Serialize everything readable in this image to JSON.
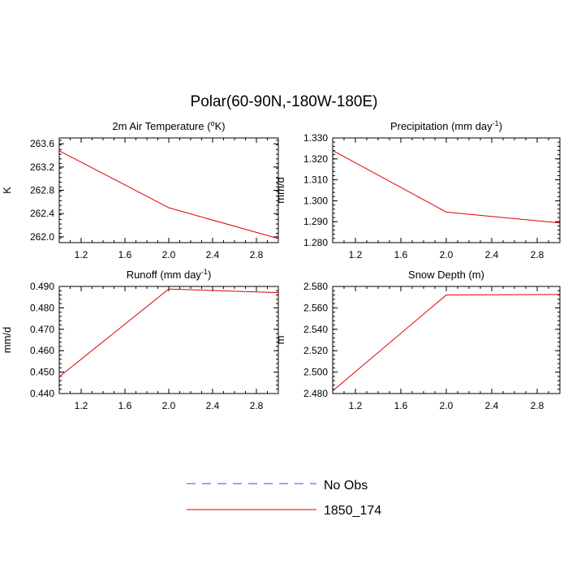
{
  "figure": {
    "title": "Polar(60-90N,-180W-180E)"
  },
  "legend": {
    "entries": [
      {
        "label": "No Obs",
        "color": "#4040ff",
        "dash": "dashed"
      },
      {
        "label": "1850_174",
        "color": "#e00000",
        "dash": "solid"
      }
    ]
  },
  "chart_data": [
    {
      "type": "line",
      "title_main": "2m Air Temperature (",
      "title_sup": "o",
      "title_tail": "K)",
      "ylabel": "K",
      "xlim": [
        1.0,
        3.0
      ],
      "ylim": [
        261.9,
        263.7
      ],
      "xticks": [
        1.2,
        1.6,
        2.0,
        2.4,
        2.8
      ],
      "xtick_labels": [
        "1.2",
        "1.6",
        "2.0",
        "2.4",
        "2.8"
      ],
      "yticks": [
        262.0,
        262.4,
        262.8,
        263.2,
        263.6
      ],
      "ytick_labels": [
        "262.0",
        "262.4",
        "262.8",
        "263.2",
        "263.6"
      ],
      "series": [
        {
          "name": "1850_174",
          "color": "#e00000",
          "x": [
            1,
            2,
            3
          ],
          "y": [
            263.48,
            262.5,
            261.97
          ]
        }
      ]
    },
    {
      "type": "line",
      "title_main": "Precipitation (mm day",
      "title_sup": "-1",
      "title_tail": ")",
      "ylabel": "mm/d",
      "xlim": [
        1.0,
        3.0
      ],
      "ylim": [
        1.28,
        1.33
      ],
      "xticks": [
        1.2,
        1.6,
        2.0,
        2.4,
        2.8
      ],
      "xtick_labels": [
        "1.2",
        "1.6",
        "2.0",
        "2.4",
        "2.8"
      ],
      "yticks": [
        1.28,
        1.29,
        1.3,
        1.31,
        1.32,
        1.33
      ],
      "ytick_labels": [
        "1.280",
        "1.290",
        "1.300",
        "1.310",
        "1.320",
        "1.330"
      ],
      "series": [
        {
          "name": "1850_174",
          "color": "#e00000",
          "x": [
            1,
            2,
            3
          ],
          "y": [
            1.324,
            1.2946,
            1.2894
          ]
        }
      ]
    },
    {
      "type": "line",
      "title_main": "Runoff (mm day",
      "title_sup": "-1",
      "title_tail": ")",
      "ylabel": "mm/d",
      "xlim": [
        1.0,
        3.0
      ],
      "ylim": [
        0.44,
        0.49
      ],
      "xticks": [
        1.2,
        1.6,
        2.0,
        2.4,
        2.8
      ],
      "xtick_labels": [
        "1.2",
        "1.6",
        "2.0",
        "2.4",
        "2.8"
      ],
      "yticks": [
        0.44,
        0.45,
        0.46,
        0.47,
        0.48,
        0.49
      ],
      "ytick_labels": [
        "0.440",
        "0.450",
        "0.460",
        "0.470",
        "0.480",
        "0.490"
      ],
      "series": [
        {
          "name": "1850_174",
          "color": "#e00000",
          "x": [
            1,
            2,
            3
          ],
          "y": [
            0.4478,
            0.4888,
            0.4871
          ]
        }
      ]
    },
    {
      "type": "line",
      "title_main": "Snow Depth (m)",
      "title_sup": "",
      "title_tail": "",
      "ylabel": "m",
      "xlim": [
        1.0,
        3.0
      ],
      "ylim": [
        2.48,
        2.58
      ],
      "xticks": [
        1.2,
        1.6,
        2.0,
        2.4,
        2.8
      ],
      "xtick_labels": [
        "1.2",
        "1.6",
        "2.0",
        "2.4",
        "2.8"
      ],
      "yticks": [
        2.48,
        2.5,
        2.52,
        2.54,
        2.56,
        2.58
      ],
      "ytick_labels": [
        "2.480",
        "2.500",
        "2.520",
        "2.540",
        "2.560",
        "2.580"
      ],
      "series": [
        {
          "name": "1850_174",
          "color": "#e00000",
          "x": [
            1,
            2,
            3
          ],
          "y": [
            2.4825,
            2.572,
            2.5725
          ]
        }
      ]
    }
  ]
}
